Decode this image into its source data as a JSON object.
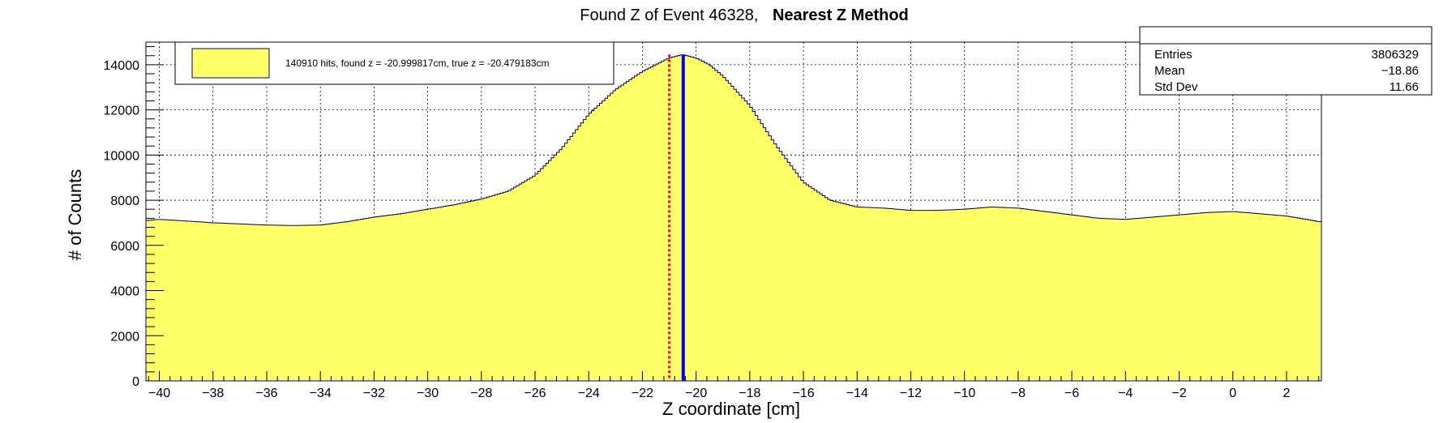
{
  "title": {
    "normal": "Found Z of Event 46328,",
    "bold": "Nearest Z Method"
  },
  "colors": {
    "fill": "#ffff66",
    "outline": "#000080",
    "found_line": "#ff0000",
    "true_line": "#0000ff",
    "grid": "#000000"
  },
  "legend": {
    "text": "140910 hits, found z = -20.999817cm, true z = -20.479183cm",
    "placement": "top-left"
  },
  "stats": {
    "rows": [
      {
        "label": "Entries",
        "value": "3806329"
      },
      {
        "label": "Mean",
        "value": "−18.86"
      },
      {
        "label": "Std Dev",
        "value": "11.66"
      }
    ]
  },
  "chart_data": {
    "type": "area",
    "xlabel": "Z coordinate [cm]",
    "ylabel": "# of Counts",
    "xlim": [
      -40.5,
      3.3
    ],
    "ylim": [
      0,
      15000
    ],
    "grid": true,
    "x_ticks": [
      -40,
      -38,
      -36,
      -34,
      -32,
      -30,
      -28,
      -26,
      -24,
      -22,
      -20,
      -18,
      -16,
      -14,
      -12,
      -10,
      -8,
      -6,
      -4,
      -2,
      0,
      2
    ],
    "x_tick_labels": [
      "−40",
      "−38",
      "−36",
      "−34",
      "−32",
      "−30",
      "−28",
      "−26",
      "−24",
      "−22",
      "−20",
      "−18",
      "−16",
      "−14",
      "−12",
      "−10",
      "−8",
      "−6",
      "−4",
      "−2",
      "0",
      "2"
    ],
    "y_ticks": [
      0,
      2000,
      4000,
      6000,
      8000,
      10000,
      12000,
      14000
    ],
    "y_tick_labels": [
      "0",
      "2000",
      "4000",
      "6000",
      "8000",
      "10000",
      "12000",
      "14000"
    ],
    "histogram": {
      "x": [
        -40.5,
        -40,
        -39,
        -38,
        -37,
        -36,
        -35,
        -34,
        -33,
        -32,
        -31,
        -30,
        -29,
        -28,
        -27,
        -26,
        -25,
        -24,
        -23,
        -22,
        -21.5,
        -21,
        -20.5,
        -20,
        -19.5,
        -19,
        -18,
        -17,
        -16,
        -15,
        -14,
        -13,
        -12,
        -11,
        -10,
        -9,
        -8,
        -7,
        -6,
        -5,
        -4,
        -3,
        -2,
        -1,
        0,
        1,
        2,
        3,
        3.2
      ],
      "y": [
        7100,
        7150,
        7080,
        7000,
        6950,
        6900,
        6880,
        6900,
        7050,
        7250,
        7400,
        7600,
        7800,
        8050,
        8400,
        9100,
        10300,
        11800,
        12900,
        13700,
        14000,
        14300,
        14450,
        14300,
        14000,
        13500,
        12200,
        10400,
        8800,
        8000,
        7700,
        7650,
        7550,
        7550,
        7600,
        7700,
        7650,
        7500,
        7350,
        7200,
        7150,
        7250,
        7350,
        7450,
        7500,
        7400,
        7300,
        7100,
        7050
      ]
    },
    "found_z": -20.999817,
    "true_z": -20.479183
  }
}
